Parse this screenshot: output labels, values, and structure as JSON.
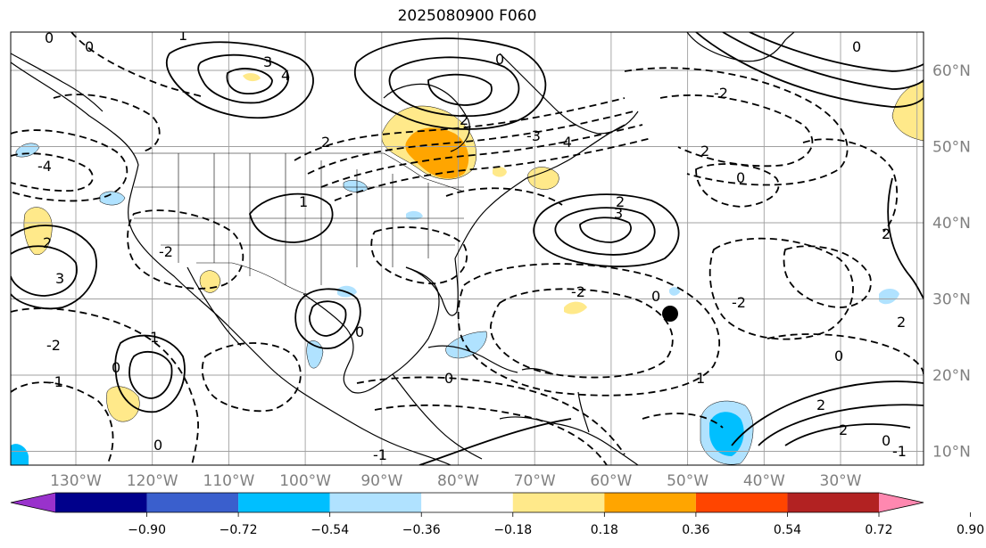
{
  "title": "2025080900 F060",
  "map": {
    "longitude_labels": [
      "130°W",
      "120°W",
      "110°W",
      "100°W",
      "90°W",
      "80°W",
      "70°W",
      "60°W",
      "50°W",
      "40°W",
      "30°W"
    ],
    "latitude_labels": [
      "60°N",
      "50°N",
      "40°N",
      "30°N",
      "20°N",
      "10°N"
    ],
    "gridline_color": "#a0a0a0",
    "contour_labels": [
      "0",
      "1",
      "2",
      "3",
      "4",
      "-1",
      "-2",
      "-3",
      "-4"
    ],
    "marker": {
      "label": "black-dot-marker",
      "lon": -54.5,
      "lat": 27.5
    }
  },
  "colorbar": {
    "ticks": [
      "−0.90",
      "−0.72",
      "−0.54",
      "−0.36",
      "−0.18",
      "0.18",
      "0.36",
      "0.54",
      "0.72",
      "0.90"
    ],
    "colors": [
      "#9932cc",
      "#00008b",
      "#3a5fcd",
      "#00bfff",
      "#b0e2ff",
      "#ffffff",
      "#ffe98a",
      "#ffa500",
      "#ff4500",
      "#b22222",
      "#ff88b0"
    ],
    "extend": "both"
  }
}
